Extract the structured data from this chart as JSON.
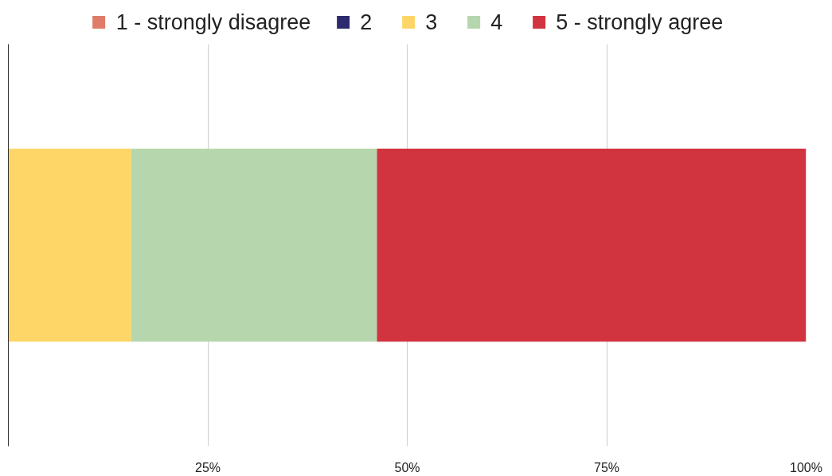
{
  "chart_data": {
    "type": "bar",
    "orientation": "horizontal",
    "stacked": true,
    "categories": [
      null
    ],
    "series": [
      {
        "name": "1 - strongly disagree",
        "color": "#e07b6a",
        "values": [
          0
        ]
      },
      {
        "name": "2",
        "color": "#2e2a6e",
        "values": [
          0
        ]
      },
      {
        "name": "3",
        "color": "#fdd667",
        "values": [
          15.4
        ]
      },
      {
        "name": "4",
        "color": "#b6d7ad",
        "values": [
          30.8
        ]
      },
      {
        "name": "5 - strongly agree",
        "color": "#d1343e",
        "values": [
          53.8
        ]
      }
    ],
    "xlim": [
      0,
      100
    ],
    "xticks": [
      {
        "value": 25,
        "label": "25%"
      },
      {
        "value": 50,
        "label": "50%"
      },
      {
        "value": 75,
        "label": "75%"
      },
      {
        "value": 100,
        "label": "100%"
      }
    ],
    "grid": "x",
    "legend": "top",
    "tick_labels": "x"
  }
}
